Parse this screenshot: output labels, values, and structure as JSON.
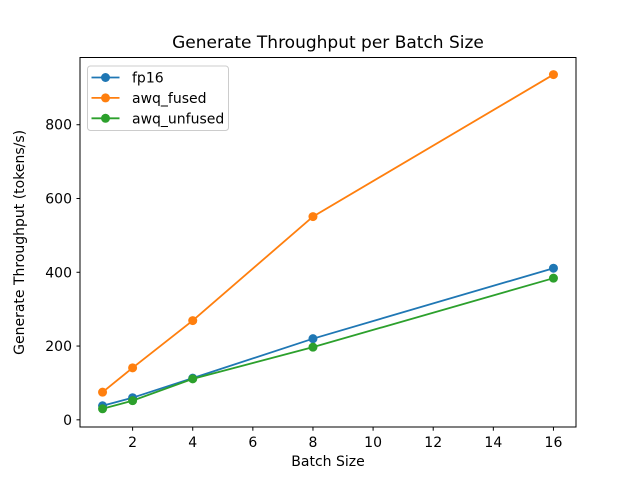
{
  "figure": {
    "background": "#ffffff"
  },
  "chart_data": {
    "type": "line",
    "title": "Generate Throughput per Batch Size",
    "xlabel": "Batch Size",
    "ylabel": "Generate Throughput (tokens/s)",
    "x": [
      1,
      2,
      4,
      8,
      16
    ],
    "series": [
      {
        "name": "fp16",
        "color": "#1f77b4",
        "values": [
          38,
          60,
          113,
          220,
          411
        ]
      },
      {
        "name": "awq_fused",
        "color": "#ff7f0e",
        "values": [
          75,
          141,
          269,
          551,
          936
        ]
      },
      {
        "name": "awq_unfused",
        "color": "#2ca02c",
        "values": [
          30,
          52,
          111,
          197,
          384
        ]
      }
    ],
    "xticks": [
      2,
      4,
      6,
      8,
      10,
      12,
      14,
      16
    ],
    "yticks": [
      0,
      200,
      400,
      600,
      800
    ],
    "xlim": [
      0.25,
      16.75
    ],
    "ylim": [
      -20,
      982
    ],
    "grid": false,
    "legend_position": "upper left",
    "marker": "o",
    "line_width": 1.8,
    "marker_radius": 4.5,
    "spine_color": "#000000",
    "legend_frame_color": "#cccccc"
  }
}
